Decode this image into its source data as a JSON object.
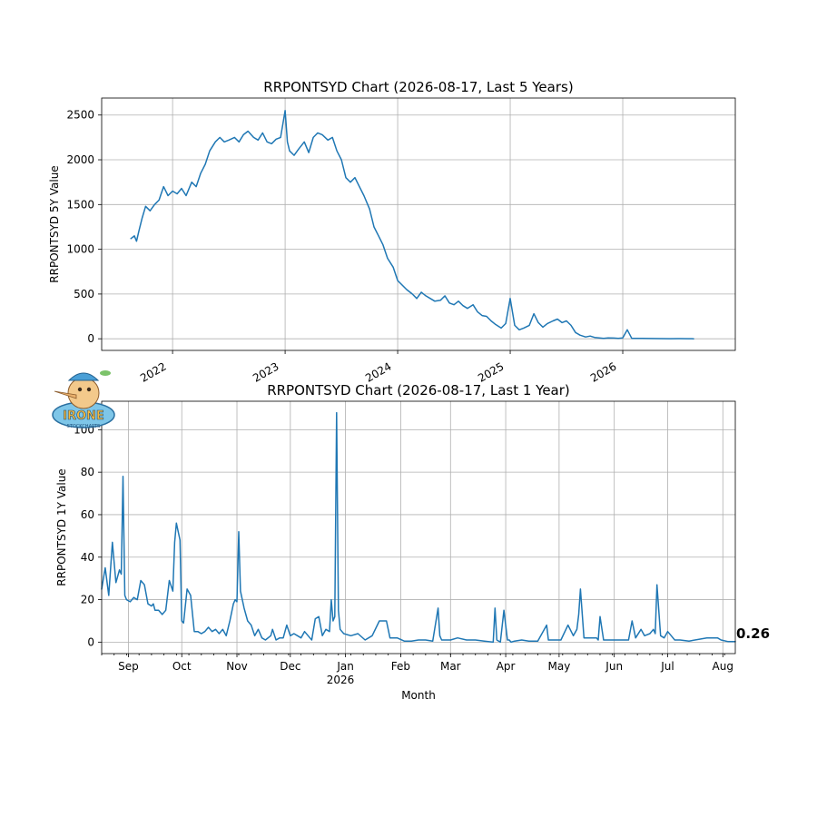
{
  "logo": {
    "text": "IRONE",
    "subtext": "STOCKCHARTS"
  },
  "chart_data": [
    {
      "type": "line",
      "title": "RRPONTSYD Chart (2026-08-17, Last 5 Years)",
      "xlabel": "",
      "ylabel": "RRPONTSYD 5Y Value",
      "x_tick_labels": [
        "2022",
        "2023",
        "2024",
        "2025",
        "2026"
      ],
      "x_tick_values": [
        2022,
        2023,
        2024,
        2025,
        2026
      ],
      "y_ticks": [
        0,
        500,
        1000,
        1500,
        2000,
        2500
      ],
      "xlim": [
        2021.37,
        2027.0
      ],
      "ylim": [
        -130,
        2690
      ],
      "grid": true,
      "series": [
        {
          "color": "#1f77b4",
          "x": [
            2021.63,
            2021.66,
            2021.68,
            2021.7,
            2021.73,
            2021.76,
            2021.8,
            2021.84,
            2021.88,
            2021.92,
            2021.96,
            2022.0,
            2022.04,
            2022.08,
            2022.12,
            2022.17,
            2022.21,
            2022.25,
            2022.29,
            2022.33,
            2022.38,
            2022.42,
            2022.46,
            2022.5,
            2022.55,
            2022.59,
            2022.63,
            2022.67,
            2022.72,
            2022.76,
            2022.8,
            2022.84,
            2022.88,
            2022.92,
            2022.96,
            2023.0,
            2023.02,
            2023.04,
            2023.08,
            2023.12,
            2023.17,
            2023.21,
            2023.25,
            2023.29,
            2023.33,
            2023.38,
            2023.42,
            2023.46,
            2023.5,
            2023.54,
            2023.58,
            2023.62,
            2023.66,
            2023.7,
            2023.75,
            2023.79,
            2023.83,
            2023.87,
            2023.91,
            2023.96,
            2024.0,
            2024.04,
            2024.08,
            2024.13,
            2024.17,
            2024.21,
            2024.25,
            2024.29,
            2024.33,
            2024.38,
            2024.42,
            2024.46,
            2024.5,
            2024.54,
            2024.58,
            2024.62,
            2024.67,
            2024.71,
            2024.75,
            2024.79,
            2024.83,
            2024.87,
            2024.92,
            2024.96,
            2025.0,
            2025.04,
            2025.08,
            2025.12,
            2025.17,
            2025.21,
            2025.25,
            2025.29,
            2025.33,
            2025.38,
            2025.42,
            2025.46,
            2025.5,
            2025.54,
            2025.58,
            2025.62,
            2025.67,
            2025.71,
            2025.75,
            2025.79,
            2025.83,
            2025.87,
            2025.92,
            2025.96,
            2026.0,
            2026.04,
            2026.08,
            2026.17,
            2026.25,
            2026.33,
            2026.42,
            2026.5,
            2026.58,
            2026.63
          ],
          "y": [
            1120,
            1150,
            1090,
            1200,
            1350,
            1480,
            1430,
            1500,
            1550,
            1700,
            1600,
            1650,
            1620,
            1680,
            1600,
            1750,
            1700,
            1850,
            1950,
            2100,
            2200,
            2250,
            2200,
            2220,
            2250,
            2200,
            2280,
            2320,
            2250,
            2220,
            2300,
            2200,
            2180,
            2230,
            2250,
            2550,
            2200,
            2100,
            2050,
            2120,
            2200,
            2080,
            2250,
            2300,
            2280,
            2220,
            2250,
            2100,
            2000,
            1800,
            1750,
            1800,
            1700,
            1600,
            1450,
            1250,
            1150,
            1050,
            900,
            800,
            650,
            600,
            550,
            500,
            450,
            520,
            480,
            450,
            420,
            430,
            480,
            400,
            380,
            420,
            370,
            340,
            380,
            300,
            260,
            250,
            200,
            160,
            120,
            170,
            450,
            150,
            100,
            120,
            150,
            280,
            180,
            130,
            170,
            200,
            220,
            180,
            200,
            150,
            70,
            40,
            20,
            30,
            15,
            10,
            5,
            10,
            8,
            5,
            10,
            100,
            5,
            5,
            3,
            2,
            1,
            2,
            1,
            0.26
          ]
        }
      ]
    },
    {
      "type": "line",
      "title": "RRPONTSYD Chart (2026-08-17, Last 1 Year)",
      "xlabel": "Month",
      "ylabel": "RRPONTSYD 1Y Value",
      "x_tick_labels": [
        "Sep",
        "Oct",
        "Nov",
        "Dec",
        "Jan",
        "Feb",
        "Mar",
        "Apr",
        "May",
        "Jun",
        "Jul",
        "Aug"
      ],
      "x_tick_values": [
        15,
        45,
        76,
        106,
        137,
        168,
        196,
        227,
        257,
        288,
        318,
        349
      ],
      "x_year_label": "2026",
      "y_ticks": [
        0,
        20,
        40,
        60,
        80,
        100
      ],
      "xlim": [
        0,
        356
      ],
      "ylim": [
        -5.4,
        113.4
      ],
      "grid": true,
      "last_value_label": "0.26",
      "series": [
        {
          "color": "#1f77b4",
          "x": [
            0,
            2,
            4,
            6,
            8,
            10,
            11,
            12,
            13,
            14,
            16,
            18,
            20,
            22,
            24,
            26,
            28,
            29,
            30,
            32,
            34,
            36,
            38,
            40,
            41,
            42,
            44,
            45,
            46,
            48,
            50,
            52,
            54,
            56,
            58,
            60,
            62,
            64,
            66,
            68,
            70,
            72,
            74,
            75,
            76,
            77,
            78,
            80,
            82,
            84,
            86,
            88,
            90,
            92,
            95,
            96,
            98,
            100,
            102,
            104,
            106,
            108,
            110,
            112,
            114,
            116,
            118,
            120,
            122,
            124,
            126,
            128,
            129,
            130,
            131,
            132,
            133,
            134,
            136,
            140,
            144,
            148,
            152,
            156,
            160,
            162,
            164,
            166,
            170,
            174,
            178,
            182,
            186,
            189,
            190,
            191,
            193,
            196,
            200,
            205,
            210,
            215,
            220,
            221,
            222,
            224,
            226,
            228,
            229,
            230,
            232,
            236,
            240,
            245,
            250,
            251,
            252,
            254,
            258,
            262,
            265,
            267,
            268,
            269,
            271,
            275,
            278,
            279,
            280,
            282,
            285,
            290,
            295,
            296,
            298,
            300,
            303,
            305,
            308,
            310,
            311,
            312,
            314,
            316,
            318,
            320,
            322,
            325,
            330,
            340,
            346,
            348,
            352,
            356
          ],
          "y": [
            25,
            35,
            22,
            47,
            28,
            34,
            32,
            78,
            22,
            20,
            19,
            21,
            20,
            29,
            27,
            18,
            17,
            18,
            15,
            15,
            13,
            15,
            29,
            24,
            47,
            56,
            48,
            10,
            9,
            25,
            22,
            5,
            5,
            4,
            5,
            7,
            5,
            6,
            4,
            6,
            3,
            10,
            18,
            20,
            19,
            52,
            24,
            16,
            10,
            8,
            3,
            6,
            2,
            1,
            3,
            6,
            1,
            2,
            2,
            8,
            3,
            4,
            3,
            2,
            5,
            3,
            1,
            11,
            12,
            3,
            6,
            5,
            20,
            10,
            12,
            108,
            15,
            6,
            4,
            3,
            4,
            1,
            3,
            10,
            10,
            2,
            2,
            2,
            0.5,
            0.5,
            1,
            1,
            0.5,
            16,
            3,
            1,
            1,
            1,
            2,
            1,
            1,
            0.5,
            0,
            16,
            1,
            0,
            15,
            1,
            1,
            0,
            0.5,
            1,
            0.5,
            0.5,
            8,
            1,
            1,
            1,
            1,
            8,
            3,
            6,
            13,
            25,
            2,
            2,
            2,
            1,
            12,
            1,
            1,
            1,
            1,
            1,
            10,
            2,
            6,
            3,
            4,
            6,
            4,
            27,
            3,
            2,
            5,
            3,
            1,
            1,
            0.5,
            2,
            2,
            1,
            0.26,
            0.26
          ]
        }
      ]
    }
  ]
}
